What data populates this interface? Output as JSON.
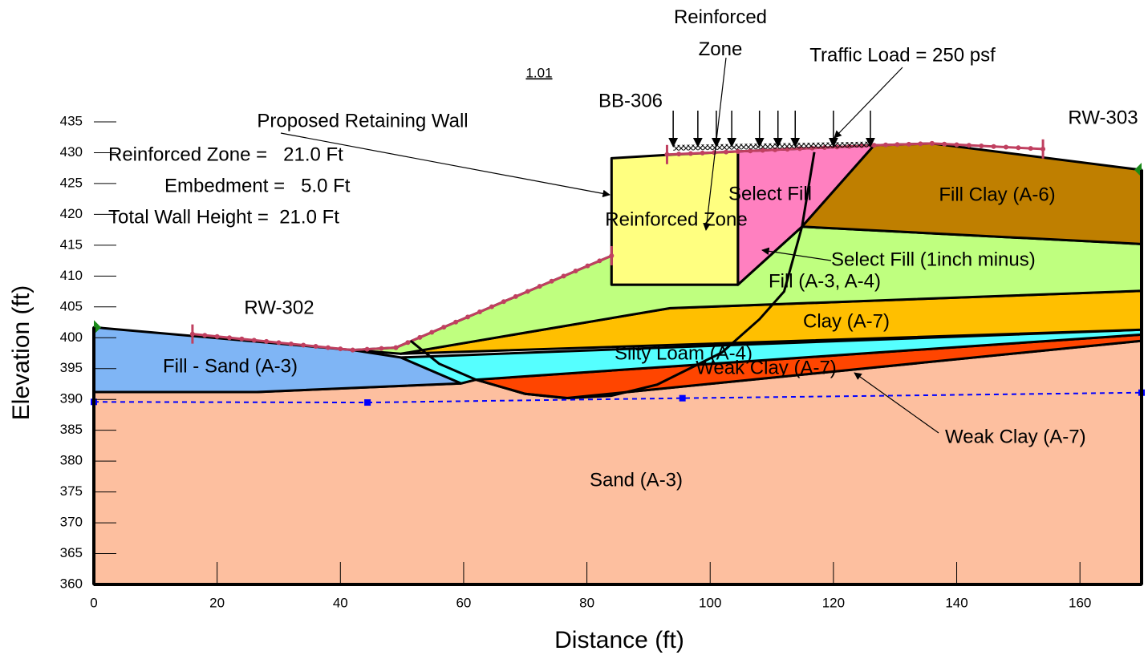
{
  "chart_data": {
    "type": "section",
    "x_label": "Distance (ft)",
    "y_label": "Elevation (ft)",
    "xlim": [
      0,
      170
    ],
    "ylim": [
      360,
      435
    ],
    "xticks": [
      0,
      20,
      40,
      60,
      80,
      100,
      120,
      140,
      160
    ],
    "yticks": [
      360,
      365,
      370,
      375,
      380,
      385,
      390,
      395,
      400,
      405,
      410,
      415,
      420,
      425,
      430,
      435
    ],
    "factor_of_safety": 1.01,
    "regions": [
      {
        "name": "Sand (A-3)",
        "color": "#fdbf9f",
        "x": [
          0,
          0,
          26.4,
          59.6,
          62,
          70,
          76.6,
          170,
          170
        ],
        "y": [
          360,
          391.2,
          391.2,
          392.6,
          393.2,
          390.9,
          390.2,
          399.5,
          360
        ]
      },
      {
        "name": "Fill - Sand (A-3)",
        "color": "#7fb5f5",
        "x": [
          0,
          42,
          49.8,
          59.6,
          26.4,
          0
        ],
        "y": [
          401.7,
          398,
          396.8,
          392.6,
          391.2,
          391.2
        ]
      },
      {
        "name": "Weak Clay (A-7)",
        "color": "#ff4500",
        "x": [
          62,
          170,
          170,
          76.6,
          70
        ],
        "y": [
          393.2,
          400.5,
          399.5,
          390.2,
          390.9
        ]
      },
      {
        "name": "Silty Loam (A-4)",
        "color": "#55ffff",
        "x": [
          49.8,
          170,
          170,
          62,
          59.6
        ],
        "y": [
          396.8,
          401.3,
          400.5,
          393.2,
          392.6
        ]
      },
      {
        "name": "Clay (A-7)",
        "color": "#ffbf00",
        "x": [
          49.8,
          93.5,
          170,
          170
        ],
        "y": [
          397.4,
          404.8,
          407.6,
          401.3
        ]
      },
      {
        "name": "Fill (A-3, A-4)",
        "color": "#bfff7f",
        "x": [
          42,
          49,
          84,
          84,
          104.5,
          114.9,
          170,
          170,
          93.5,
          49.8
        ],
        "y": [
          398,
          398.4,
          413.3,
          408.6,
          408.6,
          418,
          415.2,
          407.6,
          404.8,
          397.4
        ]
      },
      {
        "name": "Select Fill",
        "color": "#ff80c0",
        "x": [
          104.5,
          104.5,
          126.6,
          114.9
        ],
        "y": [
          408.6,
          430.2,
          431.2,
          418
        ]
      },
      {
        "name": "Reinforced Zone",
        "color": "#ffff80",
        "x": [
          84,
          84,
          94,
          104.5,
          104.5
        ],
        "y": [
          408.6,
          429.1,
          429.7,
          430.2,
          408.6
        ]
      },
      {
        "name": "Fill Clay (A-6)",
        "color": "#bf7f00",
        "x": [
          114.9,
          126.6,
          136,
          170,
          170
        ],
        "y": [
          418,
          431.2,
          431.5,
          427.2,
          415.2
        ]
      }
    ],
    "slip_surface": {
      "x": [
        51.4,
        56,
        62,
        70,
        77,
        84,
        91.4,
        101.9,
        108,
        112,
        114.9,
        116.9
      ],
      "y": [
        399.5,
        395.8,
        393.2,
        390.9,
        390.2,
        390.6,
        392.4,
        397.6,
        403,
        407.5,
        418,
        430.1
      ]
    },
    "water_table": {
      "color": "#0000ff",
      "x": [
        0,
        44.4,
        95.5,
        170
      ],
      "y": [
        389.6,
        389.5,
        390.2,
        391.1
      ]
    },
    "annotations": [
      "Reinforced Zone",
      "Traffic Load = 250 psf",
      "Proposed Retaining Wall",
      "Select Fill (1inch minus)",
      "Weak Clay (A-7)"
    ],
    "borings": [
      "BB-306",
      "RW-303",
      "RW-302"
    ],
    "wall_info": [
      "Reinforced Zone =   21.0 Ft",
      "Embedment =   5.0 Ft",
      "Total Wall Height =  21.0 Ft"
    ]
  }
}
